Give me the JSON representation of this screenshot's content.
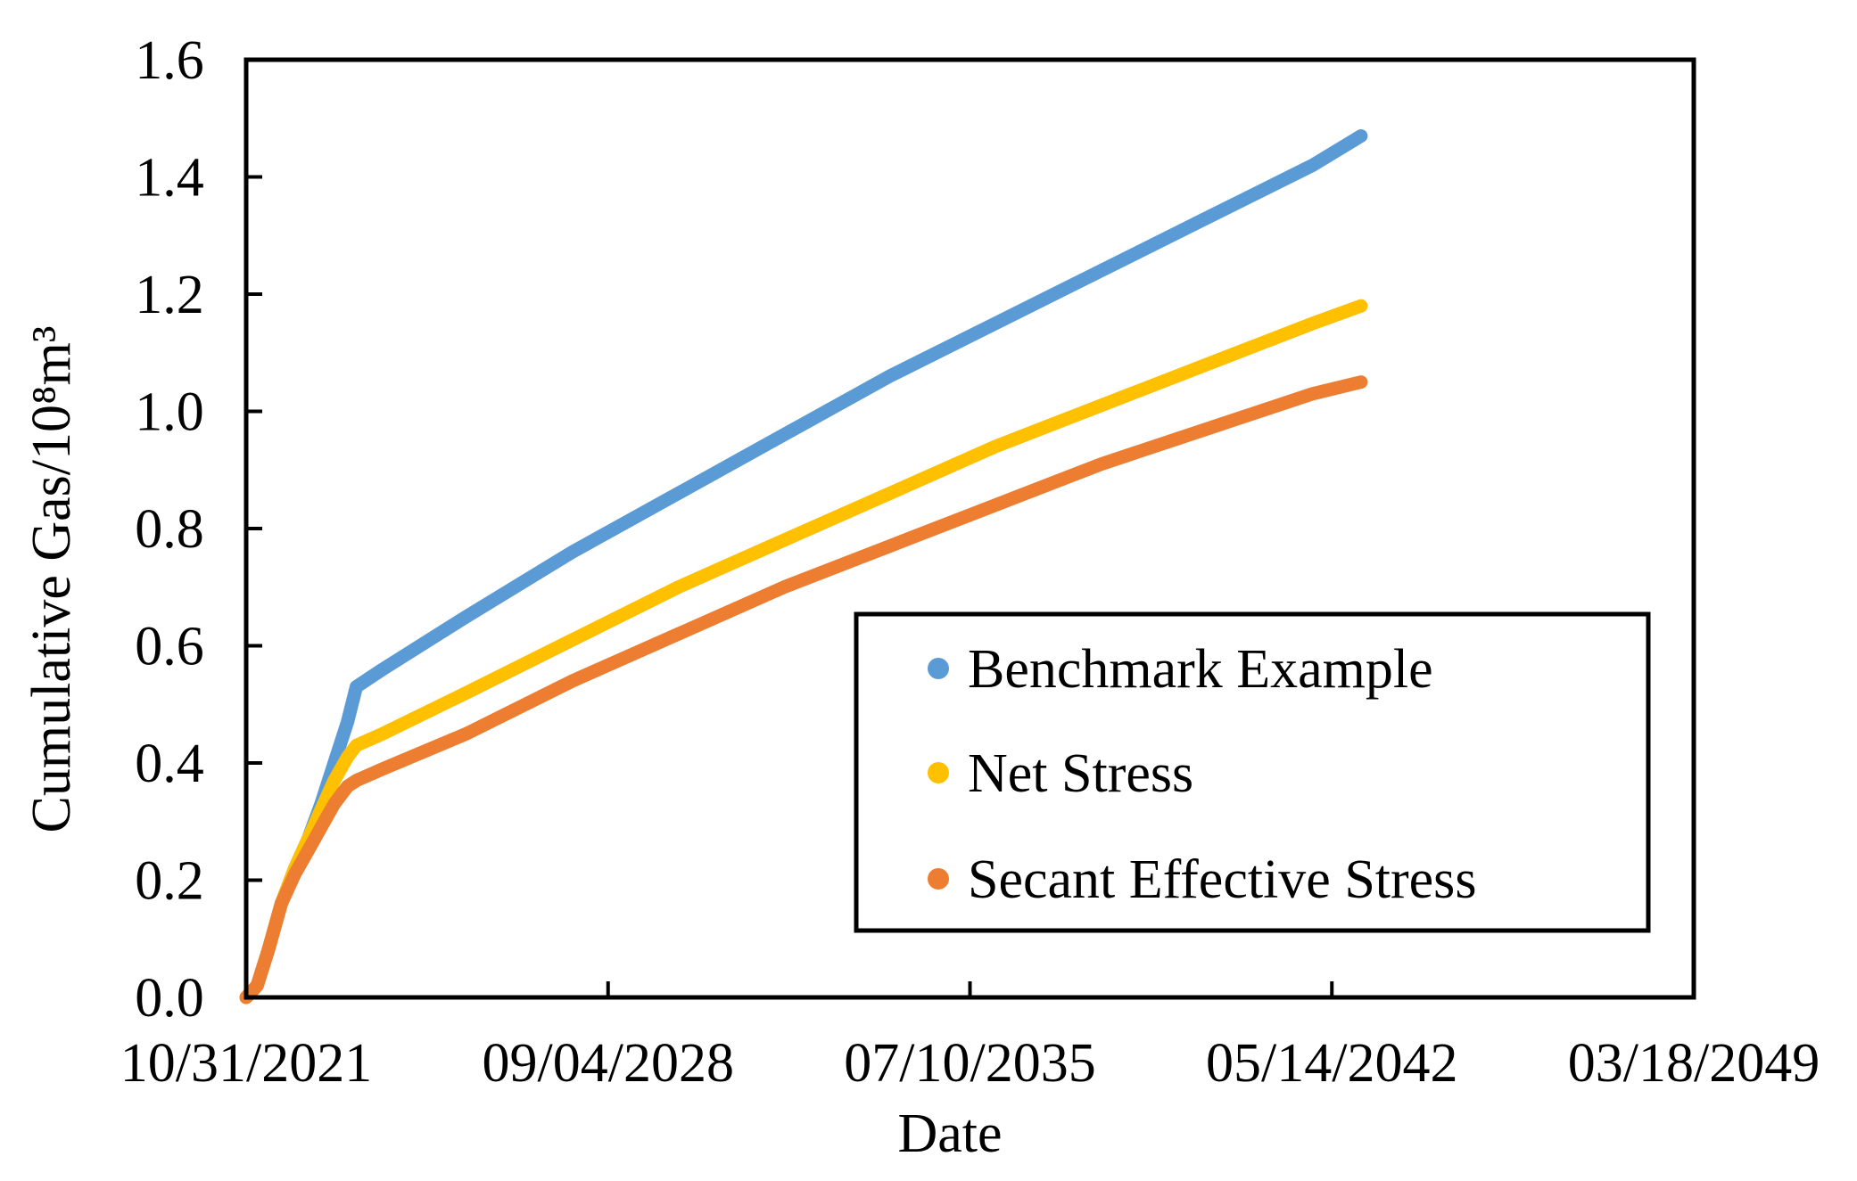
{
  "chart_data": {
    "type": "line",
    "xlabel": "Date",
    "ylabel": "Cumulative Gas/10⁸m³",
    "x_scale": "date",
    "xlim": [
      "10/31/2021",
      "03/18/2049"
    ],
    "x_ticks": [
      "10/31/2021",
      "09/04/2028",
      "07/10/2035",
      "05/14/2042",
      "03/18/2049"
    ],
    "ylim": [
      0,
      1.6
    ],
    "y_ticks": [
      "0.0",
      "0.2",
      "0.4",
      "0.6",
      "0.8",
      "1.0",
      "1.2",
      "1.4",
      "1.6"
    ],
    "grid": false,
    "legend_position": "bottom-right",
    "series": [
      {
        "name": "Benchmark Example",
        "color": "#5B9BD5",
        "points": [
          [
            "10/31/2021",
            0.0
          ],
          [
            "01/15/2022",
            0.02
          ],
          [
            "04/01/2022",
            0.08
          ],
          [
            "07/01/2022",
            0.16
          ],
          [
            "10/01/2022",
            0.22
          ],
          [
            "01/01/2023",
            0.27
          ],
          [
            "04/01/2023",
            0.33
          ],
          [
            "07/01/2023",
            0.4
          ],
          [
            "10/01/2023",
            0.47
          ],
          [
            "12/01/2023",
            0.53
          ],
          [
            "06/01/2024",
            0.56
          ],
          [
            "01/01/2026",
            0.65
          ],
          [
            "01/01/2028",
            0.76
          ],
          [
            "01/01/2030",
            0.86
          ],
          [
            "01/01/2032",
            0.96
          ],
          [
            "01/01/2034",
            1.06
          ],
          [
            "01/01/2036",
            1.15
          ],
          [
            "01/01/2038",
            1.24
          ],
          [
            "01/01/2040",
            1.33
          ],
          [
            "01/01/2042",
            1.42
          ],
          [
            "12/01/2042",
            1.47
          ]
        ]
      },
      {
        "name": "Net Stress",
        "color": "#FFC000",
        "points": [
          [
            "10/31/2021",
            0.0
          ],
          [
            "01/15/2022",
            0.02
          ],
          [
            "04/01/2022",
            0.08
          ],
          [
            "07/01/2022",
            0.16
          ],
          [
            "10/01/2022",
            0.22
          ],
          [
            "01/01/2023",
            0.27
          ],
          [
            "04/01/2023",
            0.32
          ],
          [
            "07/01/2023",
            0.37
          ],
          [
            "10/01/2023",
            0.41
          ],
          [
            "12/01/2023",
            0.43
          ],
          [
            "06/01/2024",
            0.45
          ],
          [
            "01/01/2026",
            0.52
          ],
          [
            "01/01/2028",
            0.61
          ],
          [
            "01/01/2030",
            0.7
          ],
          [
            "01/01/2032",
            0.78
          ],
          [
            "01/01/2034",
            0.86
          ],
          [
            "01/01/2036",
            0.94
          ],
          [
            "01/01/2038",
            1.01
          ],
          [
            "01/01/2040",
            1.08
          ],
          [
            "01/01/2042",
            1.15
          ],
          [
            "12/01/2042",
            1.18
          ]
        ]
      },
      {
        "name": "Secant Effective Stress",
        "color": "#ED7D31",
        "points": [
          [
            "10/31/2021",
            0.0
          ],
          [
            "01/15/2022",
            0.02
          ],
          [
            "04/01/2022",
            0.08
          ],
          [
            "07/01/2022",
            0.16
          ],
          [
            "10/01/2022",
            0.21
          ],
          [
            "01/01/2023",
            0.25
          ],
          [
            "04/01/2023",
            0.29
          ],
          [
            "07/01/2023",
            0.33
          ],
          [
            "10/01/2023",
            0.36
          ],
          [
            "12/01/2023",
            0.37
          ],
          [
            "06/01/2024",
            0.39
          ],
          [
            "01/01/2026",
            0.45
          ],
          [
            "01/01/2028",
            0.54
          ],
          [
            "01/01/2030",
            0.62
          ],
          [
            "01/01/2032",
            0.7
          ],
          [
            "01/01/2034",
            0.77
          ],
          [
            "01/01/2036",
            0.84
          ],
          [
            "01/01/2038",
            0.91
          ],
          [
            "01/01/2040",
            0.97
          ],
          [
            "01/01/2042",
            1.03
          ],
          [
            "12/01/2042",
            1.05
          ]
        ]
      }
    ]
  }
}
